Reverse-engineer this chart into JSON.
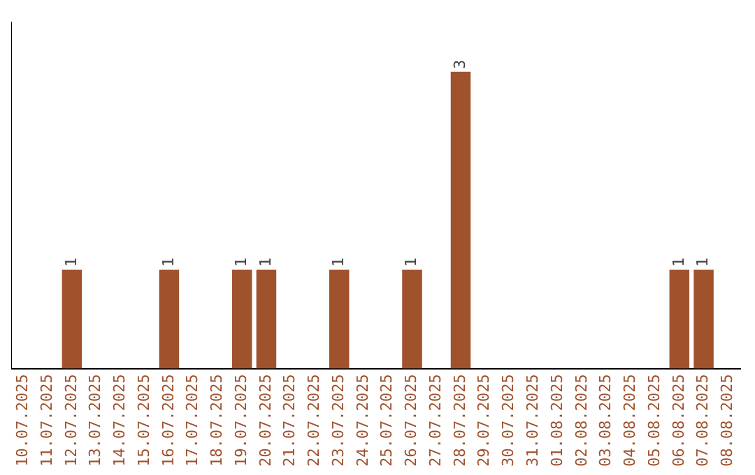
{
  "chart_data": {
    "type": "bar",
    "categories": [
      "10.07.2025",
      "11.07.2025",
      "12.07.2025",
      "13.07.2025",
      "14.07.2025",
      "15.07.2025",
      "16.07.2025",
      "17.07.2025",
      "18.07.2025",
      "19.07.2025",
      "20.07.2025",
      "21.07.2025",
      "22.07.2025",
      "23.07.2025",
      "24.07.2025",
      "25.07.2025",
      "26.07.2025",
      "27.07.2025",
      "28.07.2025",
      "29.07.2025",
      "30.07.2025",
      "31.07.2025",
      "01.08.2025",
      "02.08.2025",
      "03.08.2025",
      "04.08.2025",
      "05.08.2025",
      "06.08.2025",
      "07.08.2025",
      "08.08.2025"
    ],
    "values": [
      0,
      0,
      1,
      0,
      0,
      0,
      1,
      0,
      0,
      1,
      1,
      0,
      0,
      1,
      0,
      0,
      1,
      0,
      3,
      0,
      0,
      0,
      0,
      0,
      0,
      0,
      0,
      1,
      1,
      0
    ],
    "value_labels": [
      null,
      null,
      "1",
      null,
      null,
      null,
      "1",
      null,
      null,
      "1",
      "1",
      null,
      null,
      "1",
      null,
      null,
      "1",
      null,
      "3",
      null,
      null,
      null,
      null,
      null,
      null,
      null,
      null,
      "1",
      "1",
      null
    ],
    "color": "#a0522d",
    "grid": false,
    "legend": false,
    "tick_labels": "x"
  }
}
